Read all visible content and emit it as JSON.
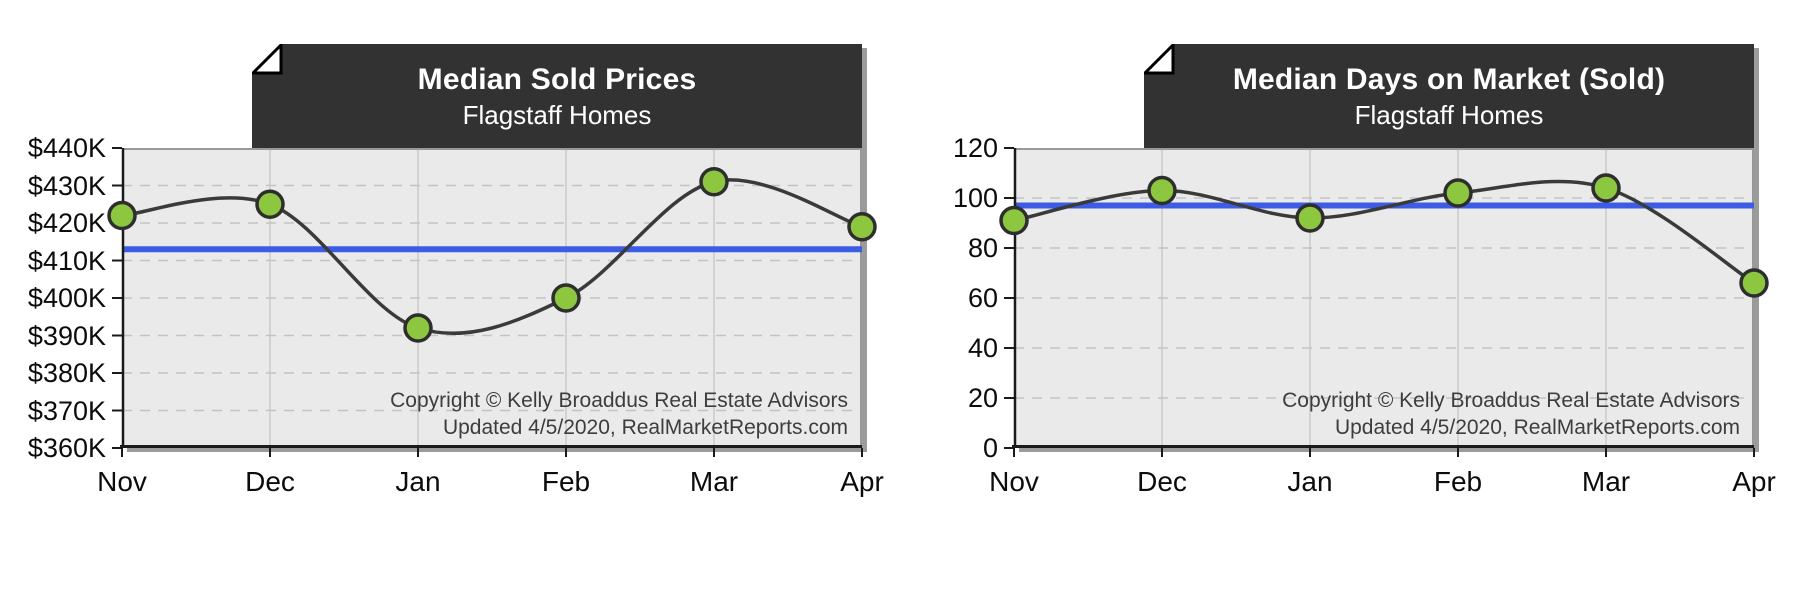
{
  "colors": {
    "page_bg": "#ffffff",
    "title_bg": "#323232",
    "title_text": "#ffffff",
    "plot_bg": "#eaeaea",
    "grid_vertical": "#cccccc",
    "grid_horizontal": "#c3c3c3",
    "frame": "#999999",
    "axis": "#1a1a1a",
    "series_line": "#3a3a3a",
    "marker_fill": "#8dc63f",
    "marker_stroke": "#2e2e2e",
    "average_line": "#3d5ce5",
    "shadow": "#9b9b9b",
    "annotation_text": "#3d3d3d"
  },
  "chart_data": [
    {
      "type": "line",
      "title": "Median Sold Prices",
      "subtitle": "Flagstaff Homes",
      "categories": [
        "Nov",
        "Dec",
        "Jan",
        "Feb",
        "Mar",
        "Apr"
      ],
      "values": [
        422,
        425,
        392,
        400,
        431,
        419
      ],
      "unit": "USD thousands",
      "average_line": 413,
      "ylim": [
        360,
        440
      ],
      "y_ticks": [
        {
          "label": "$440K",
          "value": 440
        },
        {
          "label": "$430K",
          "value": 430
        },
        {
          "label": "$420K",
          "value": 420
        },
        {
          "label": "$410K",
          "value": 410
        },
        {
          "label": "$400K",
          "value": 400
        },
        {
          "label": "$390K",
          "value": 390
        },
        {
          "label": "$380K",
          "value": 380
        },
        {
          "label": "$370K",
          "value": 370
        },
        {
          "label": "$360K",
          "value": 360
        }
      ],
      "grid": "on",
      "legend": "none",
      "annotations": [
        "Copyright © Kelly Broaddus Real Estate Advisors",
        "Updated 4/5/2020, RealMarketReports.com"
      ]
    },
    {
      "type": "line",
      "title": "Median Days on Market (Sold)",
      "subtitle": "Flagstaff Homes",
      "categories": [
        "Nov",
        "Dec",
        "Jan",
        "Feb",
        "Mar",
        "Apr"
      ],
      "values": [
        91,
        103,
        92,
        102,
        104,
        66
      ],
      "unit": "days",
      "average_line": 97,
      "ylim": [
        0,
        120
      ],
      "y_ticks": [
        {
          "label": "120",
          "value": 120
        },
        {
          "label": "100",
          "value": 100
        },
        {
          "label": "80",
          "value": 80
        },
        {
          "label": "60",
          "value": 60
        },
        {
          "label": "40",
          "value": 40
        },
        {
          "label": "20",
          "value": 20
        },
        {
          "label": "0",
          "value": 0
        }
      ],
      "grid": "on",
      "legend": "none",
      "annotations": [
        "Copyright © Kelly Broaddus Real Estate Advisors",
        "Updated 4/5/2020, RealMarketReports.com"
      ]
    }
  ]
}
